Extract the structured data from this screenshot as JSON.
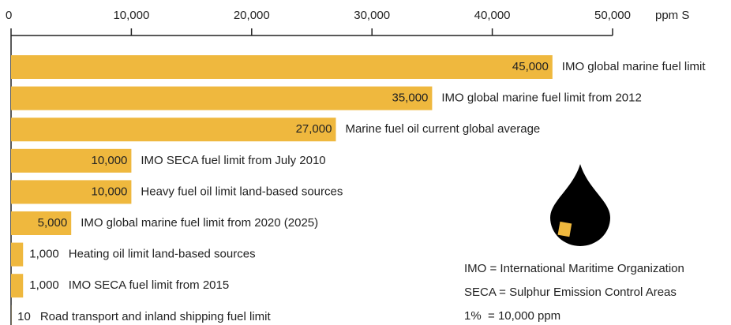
{
  "chart_data": {
    "type": "bar",
    "orientation": "horizontal",
    "x_label": "ppm S",
    "categories": [
      "IMO global marine fuel limit",
      "IMO global marine fuel limit from 2012",
      "Marine fuel oil current global average",
      "IMO SECA fuel limit from July 2010",
      "Heavy fuel oil limit land-based sources",
      "IMO global marine fuel limit from 2020 (2025)",
      "Heating oil limit land-based sources",
      "IMO SECA fuel limit from 2015",
      "Road transport and inland shipping fuel limit"
    ],
    "values": [
      45000,
      35000,
      27000,
      10000,
      10000,
      5000,
      1000,
      1000,
      10
    ],
    "value_labels": [
      "45,000",
      "35,000",
      "27,000",
      "10,000",
      "10,000",
      "5,000",
      "1,000",
      "1,000",
      "10"
    ],
    "color": "#efb83e",
    "xlim": [
      0,
      50000
    ],
    "xticks": [
      0,
      {
        "value": 10000,
        "label": "10,000"
      },
      {
        "value": 20000,
        "label": "20,000"
      },
      {
        "value": 30000,
        "label": "30,000"
      },
      {
        "value": 40000,
        "label": "40,000"
      },
      {
        "value": 50000,
        "label": "50,000"
      }
    ],
    "notes": [
      "IMO = International Maritime Organization",
      "SECA = Sulphur Emission Control Areas",
      "1%  = 10,000 ppm"
    ]
  }
}
